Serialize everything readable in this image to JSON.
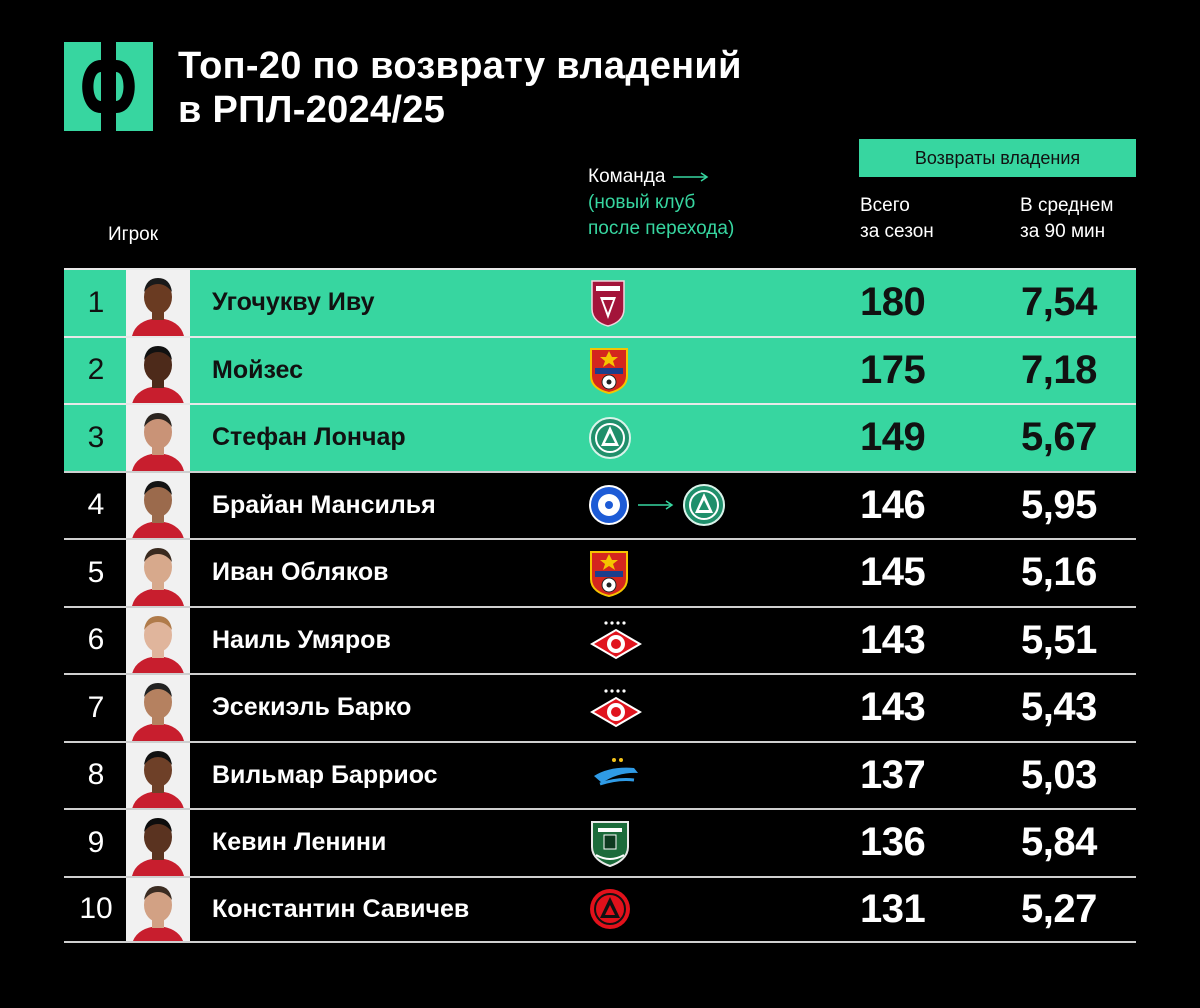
{
  "header": {
    "title_line1": "Топ-20 по возврату владений",
    "title_line2": "в РПЛ-2024/25",
    "logo_icon": "phi-logo-icon"
  },
  "columns": {
    "player": "Игрок",
    "team": "Команда",
    "team_note_line1": "(новый клуб",
    "team_note_line2": "после перехода)",
    "group": "Возвраты владения",
    "total_line1": "Всего",
    "total_line2": "за сезон",
    "avg_line1": "В среднем",
    "avg_line2": "за 90 мин"
  },
  "colors": {
    "accent": "#37d6a0",
    "background": "#000000",
    "row_divider": "#cfcfcf"
  },
  "chart_data": {
    "type": "table",
    "title": "Топ-20 по возврату владений в РПЛ-2024/25",
    "columns": [
      "Игрок",
      "Команда",
      "Всего за сезон",
      "В среднем за 90 мин"
    ],
    "rows": [
      {
        "rank": "1",
        "player": "Угочукву Иву",
        "club": [
          "rubin-logo-icon"
        ],
        "total": "180",
        "avg": "7,54",
        "highlight": true
      },
      {
        "rank": "2",
        "player": "Мойзес",
        "club": [
          "cska-logo-icon"
        ],
        "total": "175",
        "avg": "7,18",
        "highlight": true
      },
      {
        "rank": "3",
        "player": "Стефан Лончар",
        "club": [
          "akhmat-logo-icon"
        ],
        "total": "149",
        "avg": "5,67",
        "highlight": true
      },
      {
        "rank": "4",
        "player": "Брайан Мансилья",
        "club": [
          "orenburg-logo-icon",
          "akhmat-logo-icon"
        ],
        "total": "146",
        "avg": "5,95",
        "highlight": false
      },
      {
        "rank": "5",
        "player": "Иван Обляков",
        "club": [
          "cska-logo-icon"
        ],
        "total": "145",
        "avg": "5,16",
        "highlight": false
      },
      {
        "rank": "6",
        "player": "Наиль Умяров",
        "club": [
          "spartak-logo-icon"
        ],
        "total": "143",
        "avg": "5,51",
        "highlight": false
      },
      {
        "rank": "7",
        "player": "Эсекиэль Барко",
        "club": [
          "spartak-logo-icon"
        ],
        "total": "143",
        "avg": "5,43",
        "highlight": false
      },
      {
        "rank": "8",
        "player": "Вильмар Барриос",
        "club": [
          "zenit-logo-icon"
        ],
        "total": "137",
        "avg": "5,03",
        "highlight": false
      },
      {
        "rank": "9",
        "player": "Кевин Ленини",
        "club": [
          "krasnodar-logo-icon"
        ],
        "total": "136",
        "avg": "5,84",
        "highlight": false
      },
      {
        "rank": "10",
        "player": "Константин Савичев",
        "club": [
          "akhmat-red-logo-icon"
        ],
        "total": "131",
        "avg": "5,27",
        "highlight": false
      }
    ]
  }
}
